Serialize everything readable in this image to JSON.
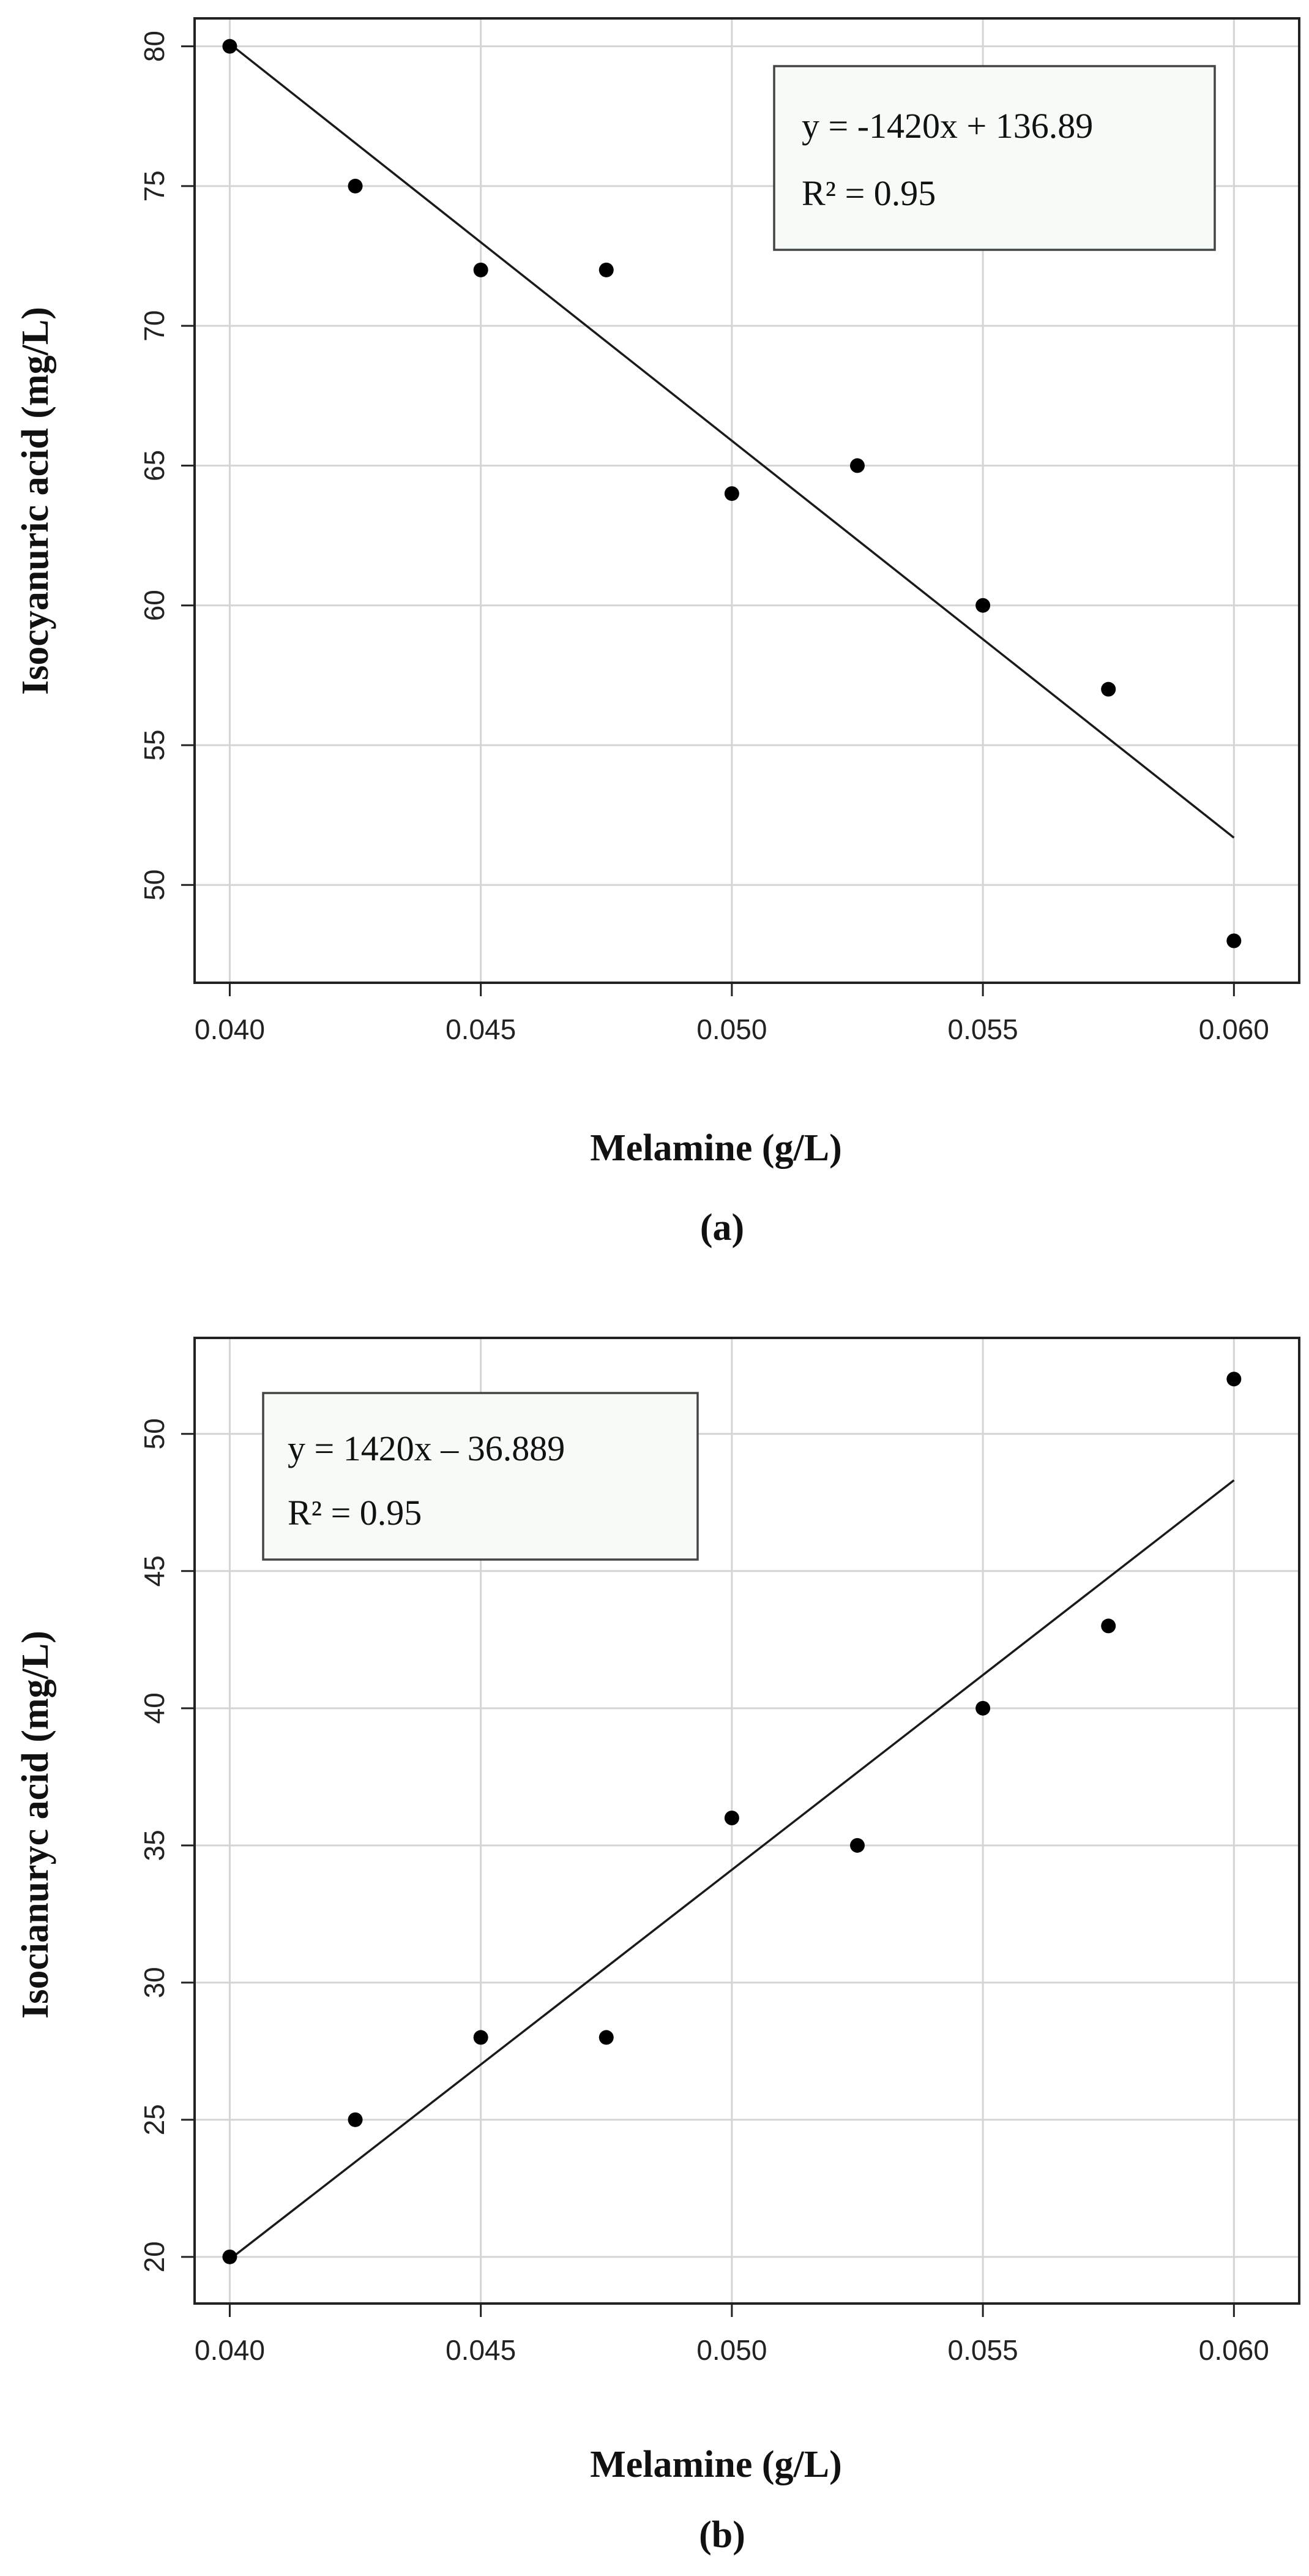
{
  "chart_data": [
    {
      "type": "scatter",
      "panel_label": "(a)",
      "xlabel": "Melamine (g/L)",
      "ylabel": "Isocyanuric acid (mg/L)",
      "xlim": [
        0.0393,
        0.0613
      ],
      "ylim": [
        46.5,
        81
      ],
      "xticks": [
        "0.040",
        "0.045",
        "0.050",
        "0.055",
        "0.060"
      ],
      "yticks": [
        "50",
        "55",
        "60",
        "65",
        "70",
        "75",
        "80"
      ],
      "grid": true,
      "x": [
        0.04,
        0.0425,
        0.045,
        0.0475,
        0.05,
        0.0525,
        0.055,
        0.0575,
        0.06
      ],
      "y": [
        80,
        75,
        72,
        72,
        64,
        65,
        60,
        57,
        48
      ],
      "trendline": {
        "slope": -1420,
        "intercept": 136.89
      },
      "annotation": {
        "equation": "y = -1420x + 136.89",
        "r2": "R² = 0.95",
        "position": "top-right"
      }
    },
    {
      "type": "scatter",
      "panel_label": "(b)",
      "xlabel": "Melamine (g/L)",
      "ylabel": "Isocianuryc acid (mg/L)",
      "xlim": [
        0.0393,
        0.0613
      ],
      "ylim": [
        18.3,
        53.5
      ],
      "xticks": [
        "0.040",
        "0.045",
        "0.050",
        "0.055",
        "0.060"
      ],
      "yticks": [
        "20",
        "25",
        "30",
        "35",
        "40",
        "45",
        "50"
      ],
      "grid": true,
      "x": [
        0.04,
        0.0425,
        0.045,
        0.0475,
        0.05,
        0.0525,
        0.055,
        0.0575,
        0.06
      ],
      "y": [
        20,
        25,
        28,
        28,
        36,
        35,
        40,
        43,
        52
      ],
      "trendline": {
        "slope": 1420,
        "intercept": -36.889
      },
      "annotation": {
        "equation": "y = 1420x – 36.889",
        "r2": "R² = 0.95",
        "position": "top-left"
      }
    }
  ]
}
